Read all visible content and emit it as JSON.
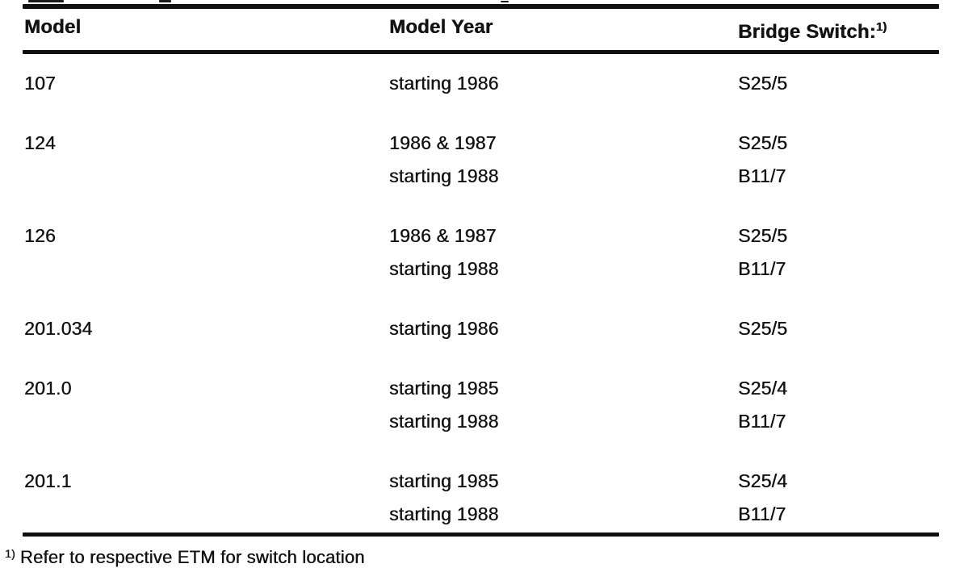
{
  "table": {
    "columns": [
      {
        "label": "Model"
      },
      {
        "label": "Model Year"
      },
      {
        "label": "Bridge Switch:",
        "superscript": "1)"
      }
    ],
    "rows": [
      {
        "model": "107",
        "entries": [
          {
            "year": "starting 1986",
            "switch": "S25/5"
          }
        ]
      },
      {
        "model": "124",
        "entries": [
          {
            "year": "1986 & 1987",
            "switch": "S25/5"
          },
          {
            "year": "starting 1988",
            "switch": "B11/7"
          }
        ]
      },
      {
        "model": "126",
        "entries": [
          {
            "year": "1986 & 1987",
            "switch": "S25/5"
          },
          {
            "year": "starting 1988",
            "switch": "B11/7"
          }
        ]
      },
      {
        "model": "201.034",
        "entries": [
          {
            "year": "starting 1986",
            "switch": "S25/5"
          }
        ]
      },
      {
        "model": "201.0",
        "entries": [
          {
            "year": "starting 1985",
            "switch": "S25/4"
          },
          {
            "year": "starting 1988",
            "switch": "B11/7"
          }
        ]
      },
      {
        "model": "201.1",
        "entries": [
          {
            "year": "starting 1985",
            "switch": "S25/4"
          },
          {
            "year": "starting 1988",
            "switch": "B11/7"
          }
        ]
      }
    ]
  },
  "footnote": {
    "marker": "1)",
    "text": "Refer to respective ETM for switch location"
  }
}
